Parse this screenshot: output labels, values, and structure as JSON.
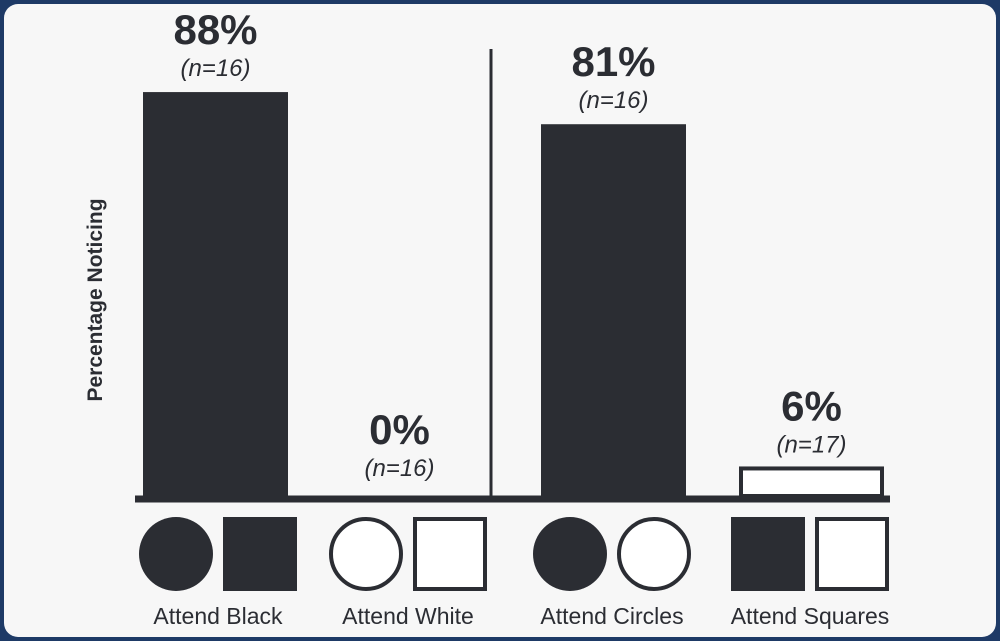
{
  "chart_data": {
    "type": "bar",
    "ylabel": "Percentage Noticing",
    "ylim": [
      0,
      100
    ],
    "categories": [
      "Attend Black",
      "Attend White",
      "Attend Circles",
      "Attend Squares"
    ],
    "values": [
      88,
      0,
      81,
      6
    ],
    "value_labels": [
      "88%",
      "0%",
      "81%",
      "6%"
    ],
    "n_labels": [
      "(n=16)",
      "(n=16)",
      "(n=16)",
      "(n=17)"
    ],
    "bar_fill": [
      "filled",
      "filled",
      "filled",
      "outline"
    ],
    "panel_divider_after": 1,
    "condition_icons": [
      [
        "filled-circle-icon",
        "filled-square-icon"
      ],
      [
        "open-circle-icon",
        "open-square-icon"
      ],
      [
        "filled-circle-icon",
        "open-circle-icon"
      ],
      [
        "filled-square-icon",
        "open-square-icon"
      ]
    ],
    "colors": {
      "ink": "#2b2d33",
      "background": "#f7f7f7",
      "frame": "#1e3a66"
    },
    "grid": false,
    "legend": "none"
  }
}
